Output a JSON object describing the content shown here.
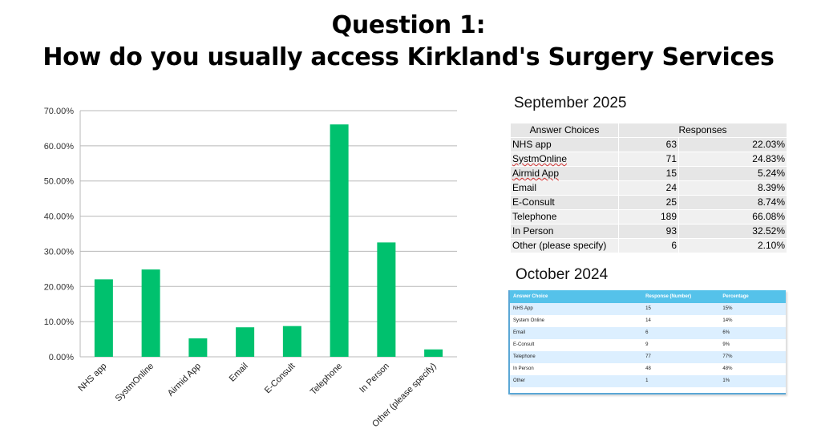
{
  "title_line1": "Question 1:",
  "title_line2": "How do you usually access Kirkland's Surgery Services",
  "chart_data": {
    "type": "bar",
    "categories": [
      "NHS app",
      "SystmOnline",
      "Airmid App",
      "Email",
      "E-Consult",
      "Telephone",
      "In Person",
      "Other (please specify)"
    ],
    "values": [
      22.03,
      24.83,
      5.24,
      8.39,
      8.74,
      66.08,
      32.52,
      2.1
    ],
    "ylim": [
      0,
      70
    ],
    "yticks": [
      "0.00%",
      "10.00%",
      "20.00%",
      "30.00%",
      "40.00%",
      "50.00%",
      "60.00%",
      "70.00%"
    ],
    "bar_color": "#00c16e",
    "grid": true
  },
  "september": {
    "label": "September 2025",
    "header_choice": "Answer Choices",
    "header_responses": "Responses",
    "rows": [
      {
        "choice": "NHS app",
        "count": "63",
        "pct": "22.03%"
      },
      {
        "choice": "SystmOnline",
        "count": "71",
        "pct": "24.83%"
      },
      {
        "choice": "Airmid App",
        "count": "15",
        "pct": "5.24%"
      },
      {
        "choice": "Email",
        "count": "24",
        "pct": "8.39%"
      },
      {
        "choice": "E-Consult",
        "count": "25",
        "pct": "8.74%"
      },
      {
        "choice": "Telephone",
        "count": "189",
        "pct": "66.08%"
      },
      {
        "choice": "In Person",
        "count": "93",
        "pct": "32.52%"
      },
      {
        "choice": "Other (please specify)",
        "count": "6",
        "pct": "2.10%"
      }
    ]
  },
  "october": {
    "label": "October 2024",
    "headers": [
      "Answer Choice",
      "Response (Number)",
      "Percentage"
    ],
    "rows": [
      [
        "NHS App",
        "15",
        "15%"
      ],
      [
        "System Online",
        "14",
        "14%"
      ],
      [
        "Email",
        "6",
        "6%"
      ],
      [
        "E-Consult",
        "9",
        "9%"
      ],
      [
        "Telephone",
        "77",
        "77%"
      ],
      [
        "In Person",
        "48",
        "48%"
      ],
      [
        "Other",
        "1",
        "1%"
      ]
    ]
  }
}
